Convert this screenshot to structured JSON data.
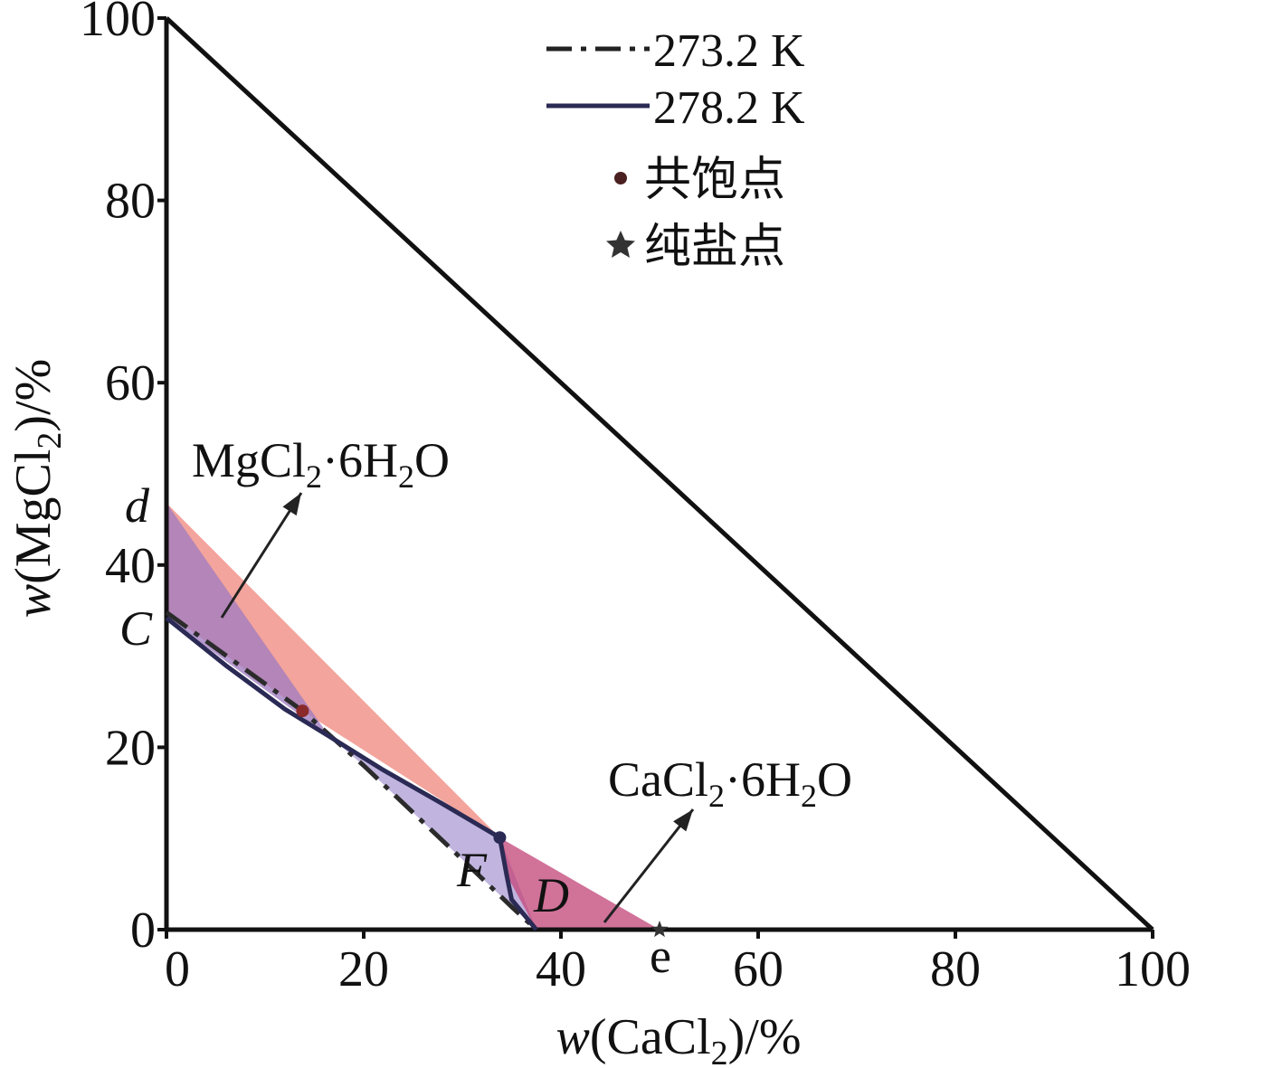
{
  "chart_data": {
    "type": "line",
    "xlabel": {
      "italic": "w",
      "pre": "(CaCl",
      "sub": "2",
      "post": ")/%"
    },
    "ylabel": {
      "italic": "w",
      "pre": "(MgCl",
      "sub": "2",
      "post": ")/%"
    },
    "xlim": [
      0,
      100
    ],
    "ylim": [
      0,
      100
    ],
    "x_ticks": [
      0,
      20,
      40,
      60,
      80,
      100
    ],
    "y_ticks": [
      0,
      20,
      40,
      60,
      80,
      100
    ],
    "x_tick_labels": [
      "0",
      "20",
      "40",
      "60",
      "80",
      "100"
    ],
    "y_tick_labels": [
      "0",
      "20",
      "40",
      "60",
      "80",
      "100"
    ],
    "grid": false,
    "legend_position": "top-center",
    "legend": [
      {
        "label": "273.2 K",
        "style": "dash-dot"
      },
      {
        "label": "278.2 K",
        "style": "solid"
      },
      {
        "label": "共饱点",
        "marker": "circle"
      },
      {
        "label": "纯盐点",
        "marker": "star"
      }
    ],
    "triangle_hypotenuse": [
      [
        0,
        100
      ],
      [
        100,
        0
      ]
    ],
    "series": [
      {
        "name": "273.2 K",
        "style": "dash-dot",
        "color": "#2b2b2b",
        "x": [
          0,
          13.8,
          20,
          30,
          35,
          37.5
        ],
        "y": [
          34.8,
          24,
          18,
          7.7,
          2.5,
          0
        ]
      },
      {
        "name": "278.2 K",
        "style": "solid",
        "color": "#2a2a55",
        "x": [
          0,
          6,
          12,
          16.5,
          22,
          28,
          33.8,
          34.5,
          35,
          37.5
        ],
        "y": [
          34.2,
          29,
          24.2,
          21.2,
          17.5,
          13.8,
          10.1,
          6,
          3.3,
          0
        ]
      }
    ],
    "regions": [
      {
        "name": "salmon-region",
        "color": "#f08a80",
        "points": [
          [
            0,
            46.8
          ],
          [
            33.8,
            10.1
          ],
          [
            13.8,
            24
          ],
          [
            0,
            34.8
          ]
        ]
      },
      {
        "name": "mgcl2-violet-region",
        "color": "#a07cc0",
        "points": [
          [
            0,
            46.8
          ],
          [
            16.5,
            21.2
          ],
          [
            0,
            34.2
          ]
        ]
      },
      {
        "name": "lavender-region",
        "color": "#b0a0d6",
        "points": [
          [
            16.5,
            21.2
          ],
          [
            33.8,
            10.1
          ],
          [
            37.5,
            0
          ],
          [
            30,
            7.7
          ],
          [
            20,
            18
          ]
        ]
      },
      {
        "name": "cacl2-magenta-region",
        "color": "#c44a7c",
        "points": [
          [
            33.8,
            10.1
          ],
          [
            50,
            0
          ],
          [
            37.5,
            0
          ],
          [
            34.5,
            6
          ]
        ]
      }
    ],
    "points": [
      {
        "name": "co-saturation-273",
        "marker": "circle",
        "x": 13.8,
        "y": 24
      },
      {
        "name": "co-saturation-278",
        "marker": "circle",
        "x": 33.8,
        "y": 10.1
      },
      {
        "name": "pure-salt-e",
        "marker": "star",
        "x": 50,
        "y": 0
      }
    ],
    "point_labels": [
      {
        "name": "label-d",
        "text": "d",
        "italic": true
      },
      {
        "name": "label-C",
        "text": "C",
        "italic": true
      },
      {
        "name": "label-F",
        "text": "F",
        "italic": true
      },
      {
        "name": "label-D",
        "text": "D",
        "italic": true
      },
      {
        "name": "label-e",
        "text": "e",
        "italic": false
      }
    ],
    "region_labels": [
      {
        "name": "mgcl2-hydrate",
        "parts": [
          "MgCl",
          "2",
          "·6H",
          "2",
          "O"
        ]
      },
      {
        "name": "cacl2-hydrate",
        "parts": [
          "CaCl",
          "2",
          "·6H",
          "2",
          "O"
        ]
      }
    ]
  }
}
